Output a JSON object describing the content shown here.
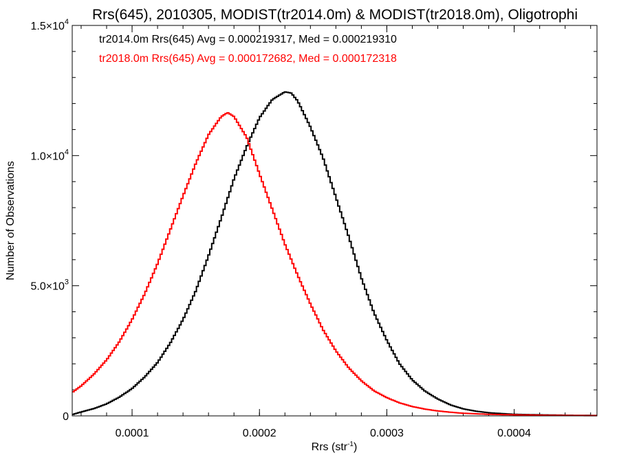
{
  "chart_data": {
    "type": "line",
    "title": "Rrs(645), 2010305, MODIST(tr2014.0m) & MODIST(tr2018.0m), Oligotrophi",
    "xlabel": "Rrs (str",
    "xlabel_sup": "-1",
    "xlabel_end": ")",
    "ylabel": "Number of Observations",
    "xlim": [
      5.3e-05,
      0.000465
    ],
    "ylim": [
      0,
      15000
    ],
    "x_ticks": [
      {
        "value": 0.0001,
        "label": "0.0001"
      },
      {
        "value": 0.0002,
        "label": "0.0002"
      },
      {
        "value": 0.0003,
        "label": "0.0003"
      },
      {
        "value": 0.0004,
        "label": "0.0004"
      }
    ],
    "y_ticks": [
      {
        "value": 0,
        "mant": "0",
        "exp": ""
      },
      {
        "value": 5000,
        "mant": "5.0×10",
        "exp": "3"
      },
      {
        "value": 10000,
        "mant": "1.0×10",
        "exp": "4"
      },
      {
        "value": 15000,
        "mant": "1.5×10",
        "exp": "4"
      }
    ],
    "legend": [
      {
        "text": "tr2014.0m Rrs(645) Avg = 0.000219317, Med = 0.000219310",
        "color": "#000000"
      },
      {
        "text": "tr2018.0m Rrs(645) Avg = 0.000172682, Med = 0.000172318",
        "color": "#ff0000"
      }
    ],
    "series": [
      {
        "color": "#000000",
        "x": [
          5.3e-05,
          6e-05,
          7e-05,
          8e-05,
          9e-05,
          0.0001,
          0.00011,
          0.00012,
          0.00013,
          0.00014,
          0.00015,
          0.00016,
          0.00017,
          0.00018,
          0.00019,
          0.0002,
          0.00021,
          0.00022,
          0.000225,
          0.00023,
          0.00024,
          0.00025,
          0.00026,
          0.00027,
          0.00028,
          0.00029,
          0.0003,
          0.00031,
          0.00032,
          0.00033,
          0.00034,
          0.00035,
          0.00036,
          0.00037,
          0.00038,
          0.00039,
          0.0004,
          0.00042,
          0.00044,
          0.000465
        ],
        "y": [
          50,
          150,
          280,
          460,
          720,
          1050,
          1500,
          2050,
          2800,
          3700,
          4800,
          6150,
          7600,
          9100,
          10350,
          11450,
          12150,
          12450,
          12400,
          12100,
          11100,
          9900,
          8400,
          6900,
          5300,
          3950,
          2900,
          2000,
          1380,
          950,
          650,
          420,
          270,
          180,
          120,
          90,
          60,
          40,
          25,
          15
        ]
      },
      {
        "color": "#ff0000",
        "x": [
          5.3e-05,
          6e-05,
          7e-05,
          8e-05,
          9e-05,
          0.0001,
          0.00011,
          0.00012,
          0.00013,
          0.00014,
          0.00015,
          0.00016,
          0.00017,
          0.000175,
          0.00018,
          0.00019,
          0.0002,
          0.00021,
          0.00022,
          0.00023,
          0.00024,
          0.00025,
          0.00026,
          0.00027,
          0.00028,
          0.00029,
          0.0003,
          0.00031,
          0.00032,
          0.00033,
          0.00034,
          0.00035,
          0.00036,
          0.00038,
          0.0004,
          0.00042,
          0.00044,
          0.000465
        ],
        "y": [
          900,
          1150,
          1600,
          2150,
          2850,
          3700,
          4700,
          5850,
          7150,
          8450,
          9700,
          10800,
          11500,
          11650,
          11500,
          10700,
          9300,
          7950,
          6600,
          5400,
          4300,
          3300,
          2500,
          1850,
          1350,
          960,
          700,
          500,
          360,
          260,
          190,
          140,
          100,
          60,
          40,
          25,
          15,
          10
        ]
      }
    ]
  }
}
